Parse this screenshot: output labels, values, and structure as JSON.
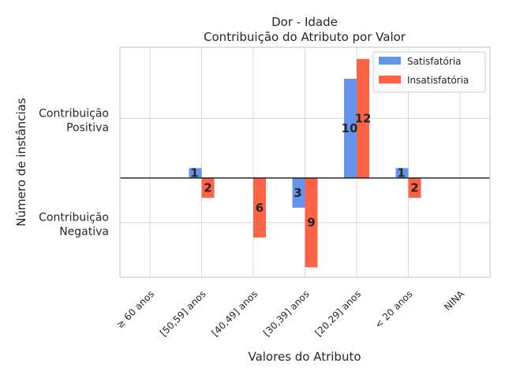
{
  "chart_data": {
    "type": "bar",
    "title": "Dor - Idade",
    "subtitle": "Contribuição do Atributo por Valor",
    "xlabel": "Valores do Atributo",
    "ylabel": "Número de instâncias",
    "ytick_labels": [
      "Contribuição\nPositiva",
      "Contribuição\nNegativa"
    ],
    "categories": [
      "≥ 60 anos",
      "[50,59] anos",
      "[40,49] anos",
      "[30,39] anos",
      "[20,29] anos",
      "< 20 anos",
      "NINA"
    ],
    "series": [
      {
        "name": "Satisfatória",
        "color": "#6495ED",
        "values": [
          0,
          1,
          0,
          -3,
          10,
          1,
          0
        ]
      },
      {
        "name": "Insatisfatória",
        "color": "#FF6347",
        "values": [
          0,
          -2,
          -6,
          -9,
          12,
          -2,
          0
        ]
      }
    ],
    "ylim": [
      -10,
      12
    ],
    "grid": true,
    "legend_position": "top-right"
  }
}
